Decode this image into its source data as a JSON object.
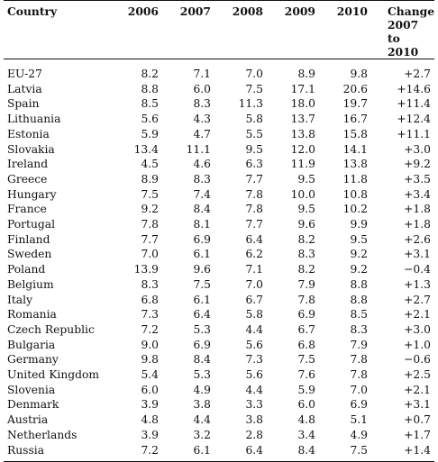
{
  "table": {
    "headers": {
      "country": "Country",
      "y2006": "2006",
      "y2007": "2007",
      "y2008": "2008",
      "y2009": "2009",
      "y2010": "2010",
      "change_line1": "Change",
      "change_line2": "2007 to",
      "change_line3": "2010"
    },
    "rows": [
      {
        "country": "EU-27",
        "y2006": "8.2",
        "y2007": "7.1",
        "y2008": "7.0",
        "y2009": "8.9",
        "y2010": "9.8",
        "change": "+2.7"
      },
      {
        "country": "Latvia",
        "y2006": "8.8",
        "y2007": "6.0",
        "y2008": "7.5",
        "y2009": "17.1",
        "y2010": "20.6",
        "change": "+14.6"
      },
      {
        "country": "Spain",
        "y2006": "8.5",
        "y2007": "8.3",
        "y2008": "11.3",
        "y2009": "18.0",
        "y2010": "19.7",
        "change": "+11.4"
      },
      {
        "country": "Lithuania",
        "y2006": "5.6",
        "y2007": "4.3",
        "y2008": "5.8",
        "y2009": "13.7",
        "y2010": "16.7",
        "change": "+12.4"
      },
      {
        "country": "Estonia",
        "y2006": "5.9",
        "y2007": "4.7",
        "y2008": "5.5",
        "y2009": "13.8",
        "y2010": "15.8",
        "change": "+11.1"
      },
      {
        "country": "Slovakia",
        "y2006": "13.4",
        "y2007": "11.1",
        "y2008": "9.5",
        "y2009": "12.0",
        "y2010": "14.1",
        "change": "+3.0"
      },
      {
        "country": "Ireland",
        "y2006": "4.5",
        "y2007": "4.6",
        "y2008": "6.3",
        "y2009": "11.9",
        "y2010": "13.8",
        "change": "+9.2"
      },
      {
        "country": "Greece",
        "y2006": "8.9",
        "y2007": "8.3",
        "y2008": "7.7",
        "y2009": "9.5",
        "y2010": "11.8",
        "change": "+3.5"
      },
      {
        "country": "Hungary",
        "y2006": "7.5",
        "y2007": "7.4",
        "y2008": "7.8",
        "y2009": "10.0",
        "y2010": "10.8",
        "change": "+3.4"
      },
      {
        "country": "France",
        "y2006": "9.2",
        "y2007": "8.4",
        "y2008": "7.8",
        "y2009": "9.5",
        "y2010": "10.2",
        "change": "+1.8"
      },
      {
        "country": "Portugal",
        "y2006": "7.8",
        "y2007": "8.1",
        "y2008": "7.7",
        "y2009": "9.6",
        "y2010": "9.9",
        "change": "+1.8"
      },
      {
        "country": "Finland",
        "y2006": "7.7",
        "y2007": "6.9",
        "y2008": "6.4",
        "y2009": "8.2",
        "y2010": "9.5",
        "change": "+2.6"
      },
      {
        "country": "Sweden",
        "y2006": "7.0",
        "y2007": "6.1",
        "y2008": "6.2",
        "y2009": "8.3",
        "y2010": "9.2",
        "change": "+3.1"
      },
      {
        "country": "Poland",
        "y2006": "13.9",
        "y2007": "9.6",
        "y2008": "7.1",
        "y2009": "8.2",
        "y2010": "9.2",
        "change": "−0.4"
      },
      {
        "country": "Belgium",
        "y2006": "8.3",
        "y2007": "7.5",
        "y2008": "7.0",
        "y2009": "7.9",
        "y2010": "8.8",
        "change": "+1.3"
      },
      {
        "country": "Italy",
        "y2006": "6.8",
        "y2007": "6.1",
        "y2008": "6.7",
        "y2009": "7.8",
        "y2010": "8.8",
        "change": "+2.7"
      },
      {
        "country": "Romania",
        "y2006": "7.3",
        "y2007": "6.4",
        "y2008": "5.8",
        "y2009": "6.9",
        "y2010": "8.5",
        "change": "+2.1"
      },
      {
        "country": "Czech Republic",
        "y2006": "7.2",
        "y2007": "5.3",
        "y2008": "4.4",
        "y2009": "6.7",
        "y2010": "8.3",
        "change": "+3.0"
      },
      {
        "country": "Bulgaria",
        "y2006": "9.0",
        "y2007": "6.9",
        "y2008": "5.6",
        "y2009": "6.8",
        "y2010": "7.9",
        "change": "+1.0"
      },
      {
        "country": "Germany",
        "y2006": "9.8",
        "y2007": "8.4",
        "y2008": "7.3",
        "y2009": "7.5",
        "y2010": "7.8",
        "change": "−0.6"
      },
      {
        "country": "United Kingdom",
        "y2006": "5.4",
        "y2007": "5.3",
        "y2008": "5.6",
        "y2009": "7.6",
        "y2010": "7.8",
        "change": "+2.5"
      },
      {
        "country": "Slovenia",
        "y2006": "6.0",
        "y2007": "4.9",
        "y2008": "4.4",
        "y2009": "5.9",
        "y2010": "7.0",
        "change": "+2.1"
      },
      {
        "country": "Denmark",
        "y2006": "3.9",
        "y2007": "3.8",
        "y2008": "3.3",
        "y2009": "6.0",
        "y2010": "6.9",
        "change": "+3.1"
      },
      {
        "country": "Austria",
        "y2006": "4.8",
        "y2007": "4.4",
        "y2008": "3.8",
        "y2009": "4.8",
        "y2010": "5.1",
        "change": "+0.7"
      },
      {
        "country": "Netherlands",
        "y2006": "3.9",
        "y2007": "3.2",
        "y2008": "2.8",
        "y2009": "3.4",
        "y2010": "4.9",
        "change": "+1.7"
      },
      {
        "country": "Russia",
        "y2006": "7.2",
        "y2007": "6.1",
        "y2008": "6.4",
        "y2009": "8.4",
        "y2010": "7.5",
        "change": "+1.4"
      }
    ]
  }
}
